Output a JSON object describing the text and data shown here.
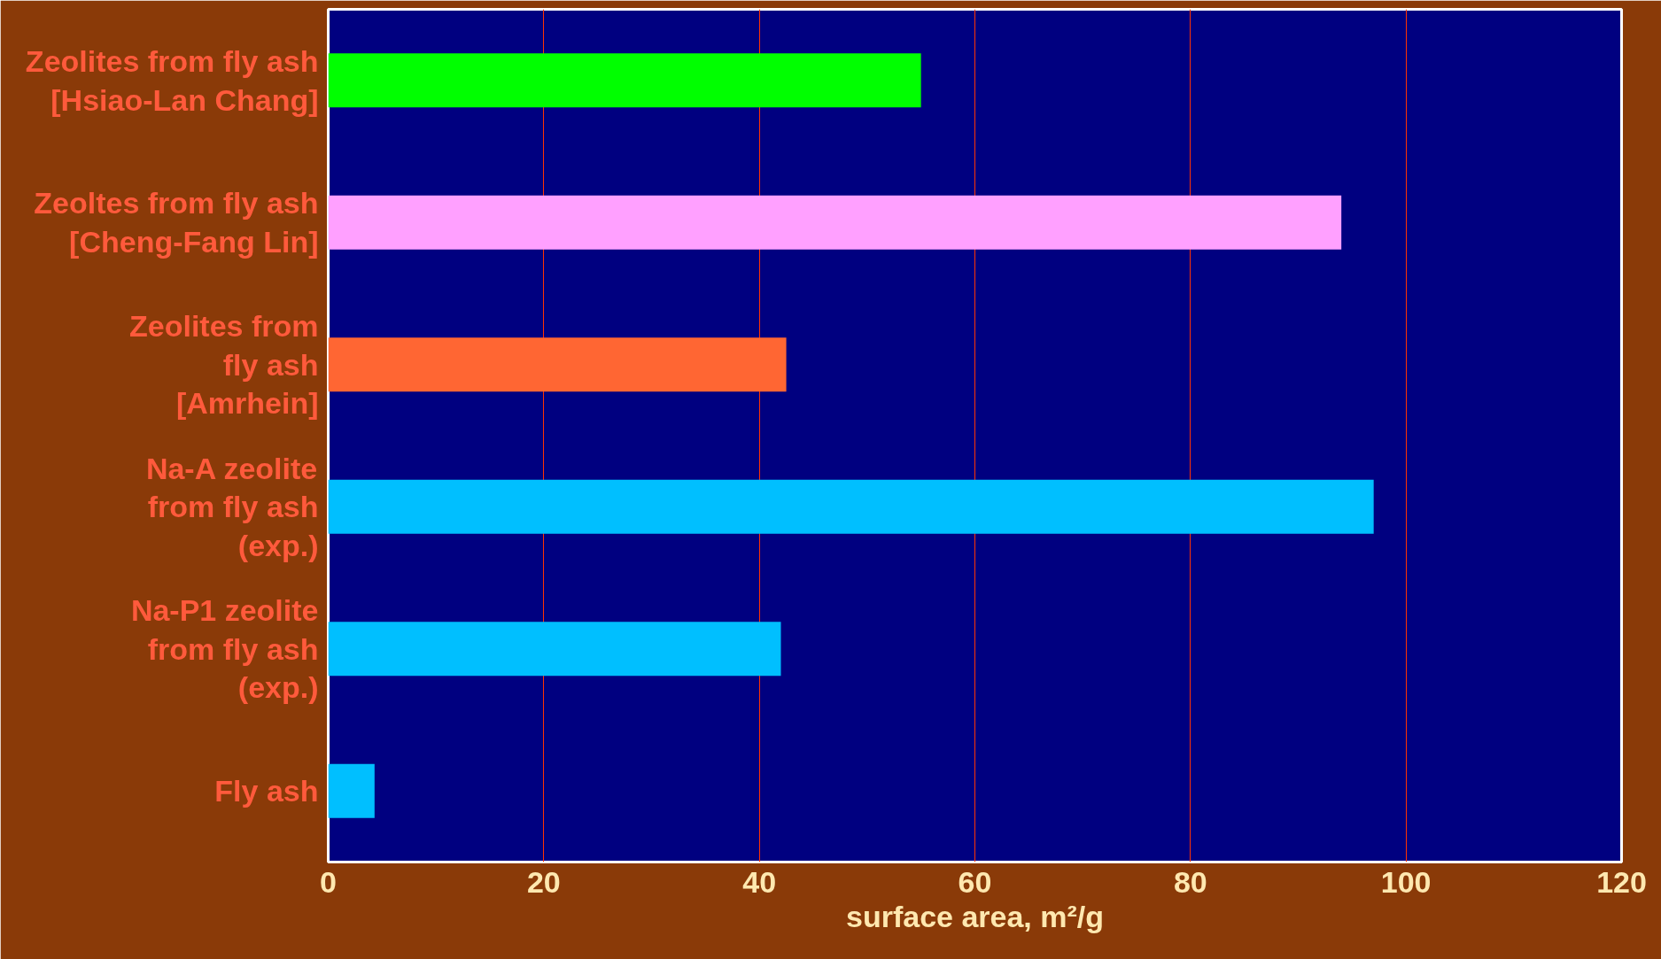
{
  "chart_data": {
    "type": "bar",
    "orientation": "horizontal",
    "categories": [
      "Zeolites from fly ash\n[Hsiao-Lan Chang]",
      "Zeoltes from fly ash\n[Cheng-Fang Lin]",
      "Zeolites from\nfly ash\n[Amrhein]",
      "Na-A zeolite\nfrom fly ash\n(exp.)",
      "Na-P1 zeolite\nfrom fly ash\n(exp.)",
      "Fly ash"
    ],
    "values": [
      55,
      94,
      42.5,
      97,
      42,
      4.3
    ],
    "colors": [
      "#00ff00",
      "#ffa0ff",
      "#ff6633",
      "#00bfff",
      "#00bfff",
      "#00bfff"
    ],
    "xlabel": "surface area, m²/g",
    "xlim": [
      0,
      120
    ],
    "xticks": [
      0,
      20,
      40,
      60,
      80,
      100,
      120
    ],
    "grid": "x"
  }
}
